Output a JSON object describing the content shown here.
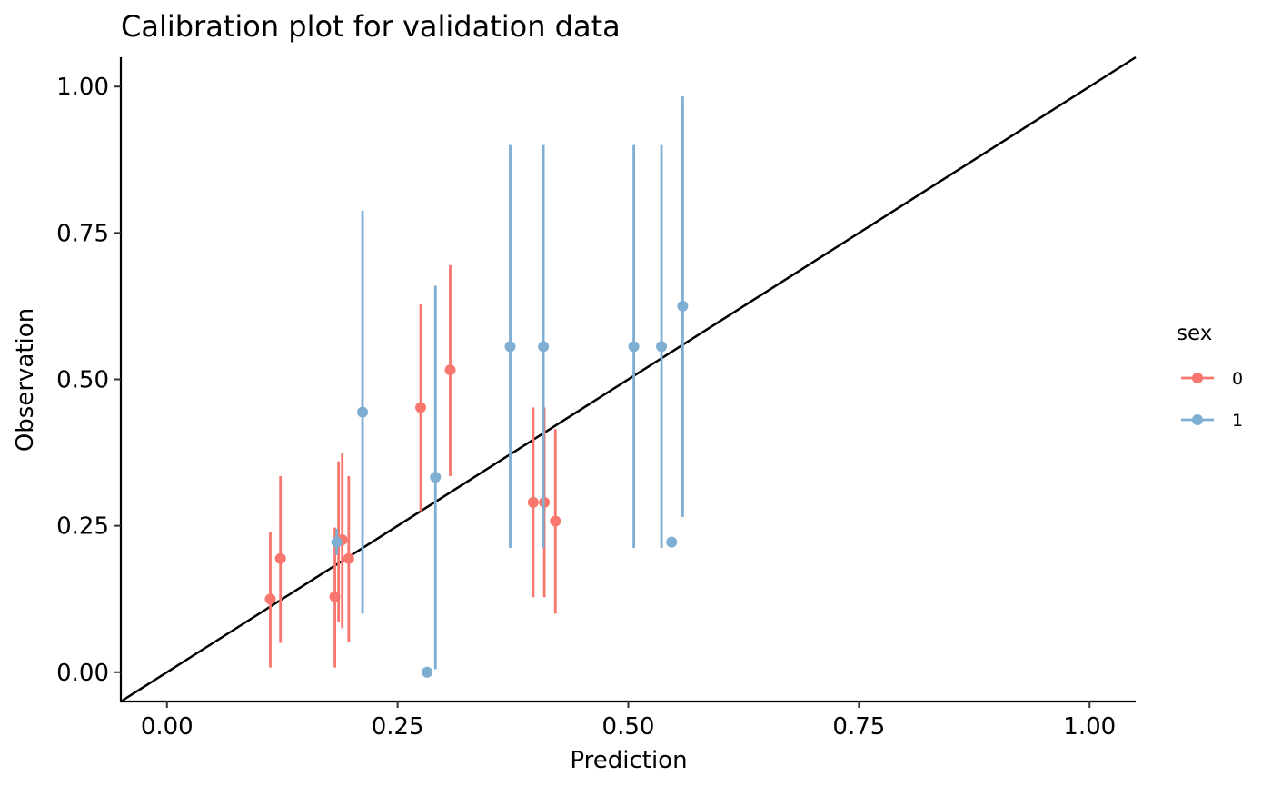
{
  "chart_data": {
    "type": "scatter",
    "title": "Calibration plot for validation data",
    "xlabel": "Prediction",
    "ylabel": "Observation",
    "xlim": [
      -0.05,
      1.05
    ],
    "ylim": [
      -0.05,
      1.05
    ],
    "xticks": [
      "0.00",
      "0.25",
      "0.50",
      "0.75",
      "1.00"
    ],
    "yticks": [
      "0.00",
      "0.25",
      "0.50",
      "0.75",
      "1.00"
    ],
    "grid": false,
    "reference_line": {
      "x": [
        -0.05,
        1.05
      ],
      "y": [
        -0.05,
        1.05
      ],
      "color": "#000000"
    },
    "legend": {
      "title": "sex",
      "position": "right"
    },
    "series": [
      {
        "name": "0",
        "color": "#F8766D",
        "points": [
          {
            "x": 0.112,
            "y": 0.125,
            "lo": 0.008,
            "hi": 0.24
          },
          {
            "x": 0.123,
            "y": 0.194,
            "lo": 0.05,
            "hi": 0.335
          },
          {
            "x": 0.182,
            "y": 0.129,
            "lo": 0.008,
            "hi": 0.247
          },
          {
            "x": 0.186,
            "y": 0.224,
            "lo": 0.085,
            "hi": 0.36
          },
          {
            "x": 0.19,
            "y": 0.226,
            "lo": 0.075,
            "hi": 0.375
          },
          {
            "x": 0.197,
            "y": 0.194,
            "lo": 0.052,
            "hi": 0.335
          },
          {
            "x": 0.275,
            "y": 0.452,
            "lo": 0.275,
            "hi": 0.628
          },
          {
            "x": 0.307,
            "y": 0.516,
            "lo": 0.335,
            "hi": 0.695
          },
          {
            "x": 0.397,
            "y": 0.29,
            "lo": 0.128,
            "hi": 0.452
          },
          {
            "x": 0.409,
            "y": 0.29,
            "lo": 0.128,
            "hi": 0.452
          },
          {
            "x": 0.421,
            "y": 0.258,
            "lo": 0.1,
            "hi": 0.415
          }
        ]
      },
      {
        "name": "1",
        "color": "#7FAED3",
        "points": [
          {
            "x": 0.184,
            "y": 0.222,
            "lo": 0.2,
            "hi": 0.245
          },
          {
            "x": 0.212,
            "y": 0.444,
            "lo": 0.1,
            "hi": 0.788
          },
          {
            "x": 0.282,
            "y": 0.0,
            "lo": 0.0,
            "hi": 0.0
          },
          {
            "x": 0.291,
            "y": 0.333,
            "lo": 0.005,
            "hi": 0.66
          },
          {
            "x": 0.372,
            "y": 0.556,
            "lo": 0.212,
            "hi": 0.9
          },
          {
            "x": 0.408,
            "y": 0.556,
            "lo": 0.212,
            "hi": 0.9
          },
          {
            "x": 0.506,
            "y": 0.556,
            "lo": 0.212,
            "hi": 0.9
          },
          {
            "x": 0.536,
            "y": 0.556,
            "lo": 0.212,
            "hi": 0.9
          },
          {
            "x": 0.547,
            "y": 0.222,
            "lo": 0.222,
            "hi": 0.222
          },
          {
            "x": 0.559,
            "y": 0.625,
            "lo": 0.265,
            "hi": 0.983
          }
        ]
      }
    ]
  }
}
